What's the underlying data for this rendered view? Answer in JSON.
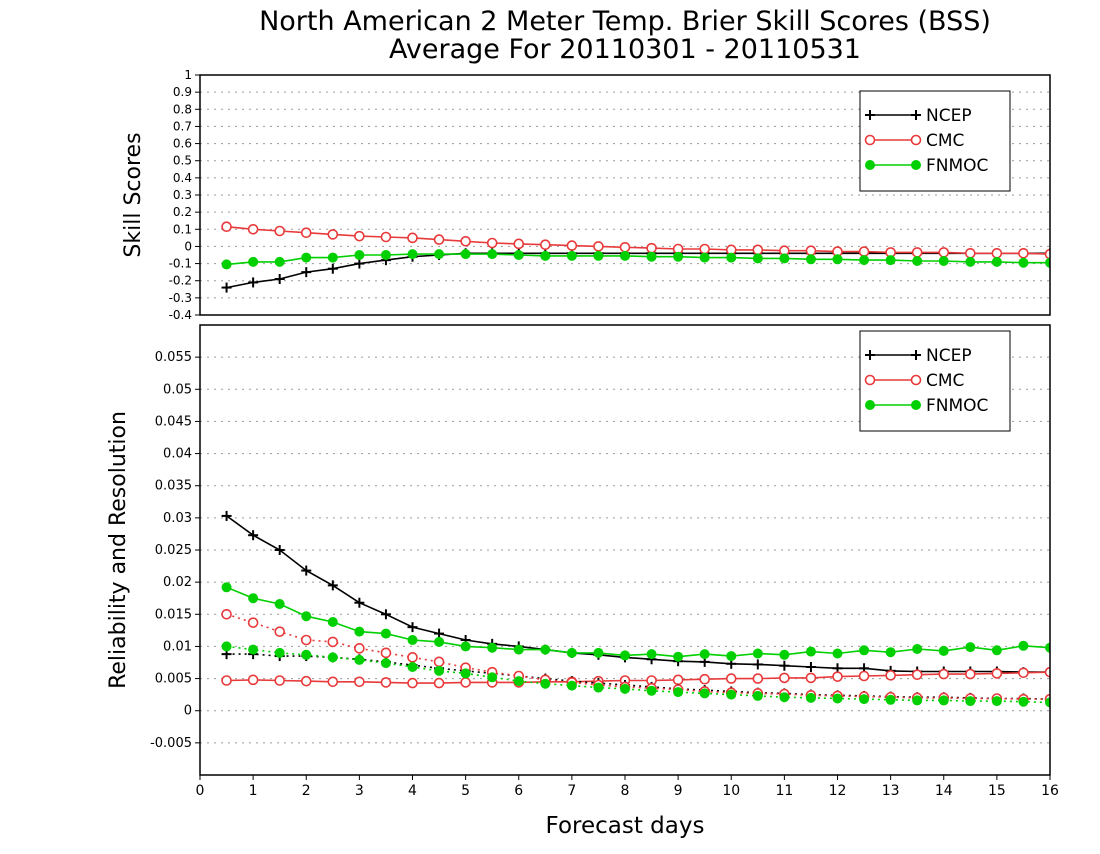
{
  "title": {
    "line1": "North American 2 Meter Temp. Brier Skill Scores (BSS)",
    "line2": "Average For 20110301 - 20110531"
  },
  "xlabel": "Forecast days",
  "colors": {
    "NCEP": "#000000",
    "CMC": "#e83a3a",
    "FNMOC": "#00d000",
    "grid": "#9a9a9a"
  },
  "chart_data": [
    {
      "type": "line",
      "ylabel": "Skill Scores",
      "xlim": [
        0,
        16
      ],
      "ylim": [
        -0.4,
        1
      ],
      "grid": true,
      "legend_position": "top-right",
      "x_ticks": [
        "0",
        "1",
        "2",
        "3",
        "4",
        "5",
        "6",
        "7",
        "8",
        "9",
        "10",
        "11",
        "12",
        "13",
        "14",
        "15",
        "16"
      ],
      "y_ticks": [
        "-0.4",
        "-0.3",
        "-0.2",
        "-0.1",
        "0",
        "0.1",
        "0.2",
        "0.3",
        "0.4",
        "0.5",
        "0.6",
        "0.7",
        "0.8",
        "0.9",
        "1"
      ],
      "x": [
        0.5,
        1,
        1.5,
        2,
        2.5,
        3,
        3.5,
        4,
        4.5,
        5,
        5.5,
        6,
        6.5,
        7,
        7.5,
        8,
        8.5,
        9,
        9.5,
        10,
        10.5,
        11,
        11.5,
        12,
        12.5,
        13,
        13.5,
        14,
        14.5,
        15,
        15.5,
        16
      ],
      "series": [
        {
          "name": "NCEP",
          "marker": "plus",
          "line": "solid",
          "values": [
            -0.24,
            -0.21,
            -0.19,
            -0.15,
            -0.13,
            -0.1,
            -0.08,
            -0.06,
            -0.05,
            -0.04,
            -0.04,
            -0.04,
            -0.04,
            -0.04,
            -0.04,
            -0.04,
            -0.04,
            -0.04,
            -0.04,
            -0.04,
            -0.04,
            -0.04,
            -0.04,
            -0.04,
            -0.04,
            -0.04,
            -0.04,
            -0.04,
            -0.04,
            -0.04,
            -0.04,
            -0.04
          ]
        },
        {
          "name": "CMC",
          "marker": "open-circle",
          "line": "solid",
          "values": [
            0.115,
            0.1,
            0.09,
            0.08,
            0.07,
            0.06,
            0.055,
            0.05,
            0.04,
            0.03,
            0.02,
            0.015,
            0.01,
            0.005,
            0.0,
            -0.005,
            -0.01,
            -0.015,
            -0.015,
            -0.02,
            -0.02,
            -0.025,
            -0.025,
            -0.03,
            -0.03,
            -0.035,
            -0.035,
            -0.035,
            -0.04,
            -0.04,
            -0.04,
            -0.045
          ]
        },
        {
          "name": "FNMOC",
          "marker": "filled-circle",
          "line": "solid",
          "values": [
            -0.105,
            -0.09,
            -0.09,
            -0.065,
            -0.065,
            -0.05,
            -0.05,
            -0.045,
            -0.045,
            -0.045,
            -0.045,
            -0.05,
            -0.055,
            -0.055,
            -0.055,
            -0.055,
            -0.06,
            -0.06,
            -0.065,
            -0.065,
            -0.07,
            -0.07,
            -0.075,
            -0.075,
            -0.08,
            -0.08,
            -0.085,
            -0.085,
            -0.09,
            -0.09,
            -0.095,
            -0.095
          ]
        }
      ]
    },
    {
      "type": "line",
      "ylabel": "Reliability and Resolution",
      "xlim": [
        0,
        16
      ],
      "ylim": [
        -0.01,
        0.06
      ],
      "grid": true,
      "legend_position": "top-right",
      "x_ticks": [
        "0",
        "1",
        "2",
        "3",
        "4",
        "5",
        "6",
        "7",
        "8",
        "9",
        "10",
        "11",
        "12",
        "13",
        "14",
        "15",
        "16"
      ],
      "y_ticks": [
        "-0.005",
        "0",
        "0.005",
        "0.01",
        "0.015",
        "0.02",
        "0.025",
        "0.03",
        "0.035",
        "0.04",
        "0.045",
        "0.05",
        "0.055"
      ],
      "x": [
        0.5,
        1,
        1.5,
        2,
        2.5,
        3,
        3.5,
        4,
        4.5,
        5,
        5.5,
        6,
        6.5,
        7,
        7.5,
        8,
        8.5,
        9,
        9.5,
        10,
        10.5,
        11,
        11.5,
        12,
        12.5,
        13,
        13.5,
        14,
        14.5,
        15,
        15.5,
        16
      ],
      "series": [
        {
          "name": "NCEP",
          "marker": "plus",
          "line": "solid",
          "values": [
            0.0303,
            0.0273,
            0.025,
            0.0218,
            0.0195,
            0.0168,
            0.015,
            0.013,
            0.012,
            0.011,
            0.0104,
            0.01,
            0.0095,
            0.009,
            0.0087,
            0.0083,
            0.008,
            0.0077,
            0.0076,
            0.0073,
            0.0072,
            0.007,
            0.0068,
            0.0066,
            0.0066,
            0.0062,
            0.0061,
            0.0061,
            0.0061,
            0.0061,
            0.006,
            0.006
          ]
        },
        {
          "name": "CMC",
          "marker": "open-circle",
          "line": "solid",
          "values": [
            0.0047,
            0.0048,
            0.0047,
            0.0046,
            0.0045,
            0.0045,
            0.0044,
            0.0043,
            0.0043,
            0.0044,
            0.0044,
            0.0044,
            0.0045,
            0.0045,
            0.0046,
            0.0047,
            0.0047,
            0.0048,
            0.0049,
            0.005,
            0.005,
            0.0051,
            0.0051,
            0.0053,
            0.0054,
            0.0055,
            0.0056,
            0.0057,
            0.0057,
            0.0058,
            0.0059,
            0.006
          ]
        },
        {
          "name": "FNMOC",
          "marker": "filled-circle",
          "line": "solid",
          "values": [
            0.0192,
            0.0175,
            0.0166,
            0.0147,
            0.0138,
            0.0123,
            0.012,
            0.011,
            0.0107,
            0.01,
            0.0098,
            0.0095,
            0.0095,
            0.009,
            0.009,
            0.0086,
            0.0088,
            0.0084,
            0.0088,
            0.0085,
            0.0089,
            0.0087,
            0.0092,
            0.0089,
            0.0094,
            0.0091,
            0.0096,
            0.0093,
            0.0099,
            0.0094,
            0.0101,
            0.0098
          ]
        },
        {
          "name": "",
          "color_of": "NCEP",
          "marker": "plus",
          "line": "dotted",
          "values": [
            0.0088,
            0.0088,
            0.0085,
            0.0085,
            0.0083,
            0.008,
            0.0076,
            0.0071,
            0.0066,
            0.0062,
            0.0058,
            0.0054,
            0.005,
            0.0046,
            0.0043,
            0.004,
            0.0037,
            0.0034,
            0.0032,
            0.003,
            0.0028,
            0.0027,
            0.0025,
            0.0024,
            0.0023,
            0.0022,
            0.0021,
            0.0021,
            0.002,
            0.0019,
            0.0019,
            0.0018
          ]
        },
        {
          "name": "",
          "color_of": "CMC",
          "marker": "open-circle",
          "line": "dotted",
          "values": [
            0.015,
            0.0137,
            0.0123,
            0.011,
            0.0107,
            0.0097,
            0.009,
            0.0083,
            0.0076,
            0.0067,
            0.006,
            0.0054,
            0.0048,
            0.0044,
            0.004,
            0.0037,
            0.0035,
            0.0033,
            0.003,
            0.0028,
            0.0027,
            0.0026,
            0.0024,
            0.0023,
            0.0022,
            0.0021,
            0.002,
            0.002,
            0.0019,
            0.0019,
            0.0018,
            0.0018
          ]
        },
        {
          "name": "",
          "color_of": "FNMOC",
          "marker": "filled-circle",
          "line": "dotted",
          "values": [
            0.01,
            0.0095,
            0.009,
            0.0087,
            0.0083,
            0.0079,
            0.0074,
            0.0068,
            0.0062,
            0.0058,
            0.0052,
            0.0046,
            0.0042,
            0.0039,
            0.0036,
            0.0034,
            0.0031,
            0.0029,
            0.0027,
            0.0025,
            0.0023,
            0.0021,
            0.002,
            0.0019,
            0.0018,
            0.0017,
            0.0016,
            0.0016,
            0.0015,
            0.0015,
            0.0014,
            0.0013
          ]
        }
      ]
    }
  ]
}
